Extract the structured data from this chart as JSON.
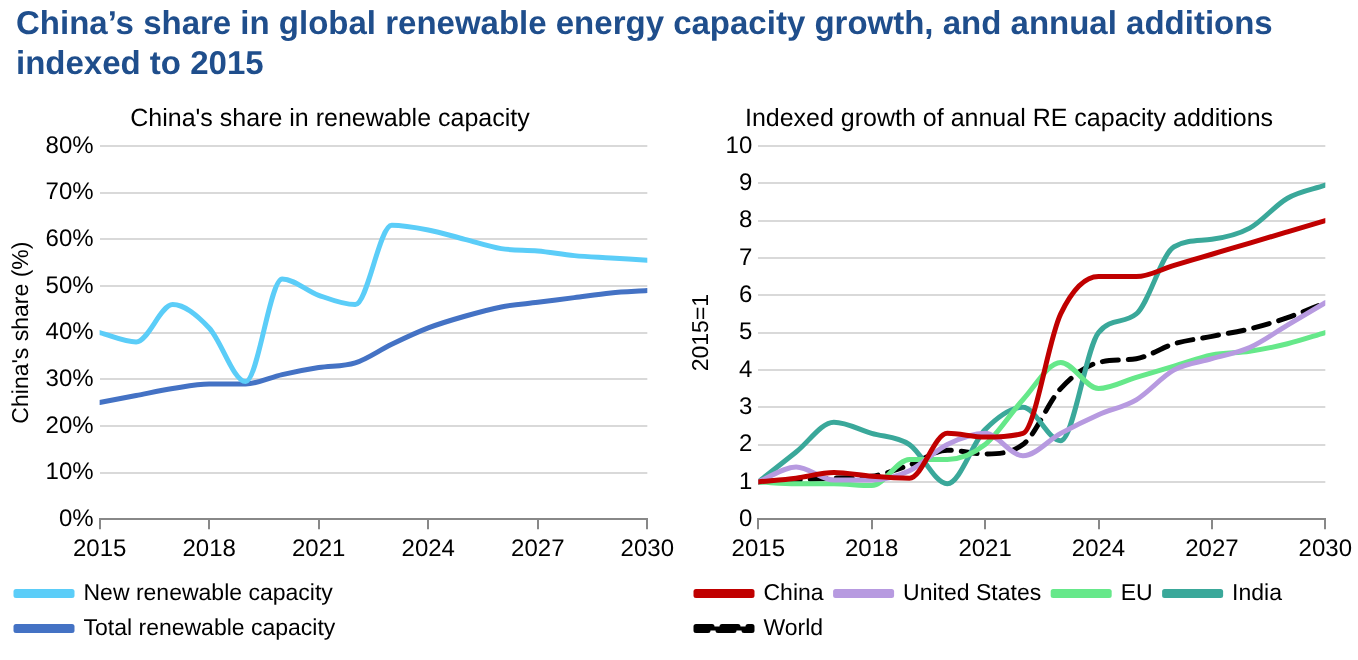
{
  "chart_data": [
    {
      "type": "line",
      "title": "China’s share in global renewable energy capacity growth, and annual additions indexed to 2015",
      "subtitle": "China's share in renewable capacity",
      "ylabel": "China's share (%)",
      "x": [
        2015,
        2016,
        2017,
        2018,
        2019,
        2020,
        2021,
        2022,
        2023,
        2024,
        2025,
        2026,
        2027,
        2028,
        2029,
        2030
      ],
      "series": [
        {
          "name": "New renewable capacity",
          "color": "#5bcdf8",
          "values": [
            40,
            38,
            46,
            41,
            29.5,
            51.5,
            48,
            46,
            63,
            62,
            60,
            58,
            57.5,
            56.5,
            56,
            55.5
          ]
        },
        {
          "name": "Total renewable capacity",
          "color": "#4472c4",
          "values": [
            25,
            26.5,
            28,
            29,
            29,
            31,
            32.5,
            33.5,
            37.5,
            41,
            43.5,
            45.5,
            46.5,
            47.5,
            48.5,
            49
          ]
        }
      ],
      "xlim": [
        2015,
        2030
      ],
      "xticks": [
        2015,
        2018,
        2021,
        2024,
        2027,
        2030
      ],
      "ylim": [
        0,
        80
      ],
      "yticks": [
        {
          "value": 0,
          "label": "0%"
        },
        {
          "value": 10,
          "label": "10%"
        },
        {
          "value": 20,
          "label": "20%"
        },
        {
          "value": 30,
          "label": "30%"
        },
        {
          "value": 40,
          "label": "40%"
        },
        {
          "value": 50,
          "label": "50%"
        },
        {
          "value": 60,
          "label": "60%"
        },
        {
          "value": 70,
          "label": "70%"
        },
        {
          "value": 80,
          "label": "80%"
        }
      ],
      "grid": "y",
      "legend": "bottom",
      "marker": "none",
      "line_style": "solid"
    },
    {
      "type": "line",
      "title": "Indexed growth of annual RE capacity additions",
      "ylabel": "2015=1",
      "x": [
        2015,
        2016,
        2017,
        2018,
        2019,
        2020,
        2021,
        2022,
        2023,
        2024,
        2025,
        2026,
        2027,
        2028,
        2029,
        2030
      ],
      "series": [
        {
          "name": "China",
          "color": "#c00000",
          "values": [
            1,
            1.1,
            1.25,
            1.15,
            1.1,
            2.3,
            2.2,
            2.3,
            5.5,
            6.5,
            6.5,
            6.8,
            7.1,
            7.4,
            7.7,
            8
          ]
        },
        {
          "name": "United States",
          "color": "#b79ae0",
          "values": [
            1,
            1.4,
            1.05,
            1.05,
            1.3,
            2,
            2.3,
            1.7,
            2.3,
            2.8,
            3.2,
            4,
            4.3,
            4.6,
            5.2,
            5.8
          ]
        },
        {
          "name": "EU",
          "color": "#66e88a",
          "values": [
            1,
            0.95,
            0.95,
            0.9,
            1.6,
            1.6,
            2,
            3.2,
            4.2,
            3.5,
            3.8,
            4.1,
            4.4,
            4.5,
            4.7,
            5
          ]
        },
        {
          "name": "India",
          "color": "#3aa89a",
          "values": [
            1,
            1.8,
            2.6,
            2.3,
            2,
            0.95,
            2.4,
            3,
            2.1,
            5,
            5.5,
            7.3,
            7.5,
            7.8,
            8.6,
            8.95
          ]
        },
        {
          "name": "World",
          "color": "#000000",
          "line_style": "dashed",
          "values": [
            1,
            1.05,
            1.1,
            1.15,
            1.45,
            1.85,
            1.75,
            2,
            3.5,
            4.2,
            4.3,
            4.7,
            4.9,
            5.1,
            5.4,
            5.8
          ]
        }
      ],
      "xlim": [
        2015,
        2030
      ],
      "xticks": [
        2015,
        2018,
        2021,
        2024,
        2027,
        2030
      ],
      "ylim": [
        0,
        10
      ],
      "yticks": [
        0,
        1,
        2,
        3,
        4,
        5,
        6,
        7,
        8,
        9,
        10
      ],
      "grid": "y",
      "legend": "bottom",
      "marker": "none",
      "line_style": "solid"
    }
  ]
}
